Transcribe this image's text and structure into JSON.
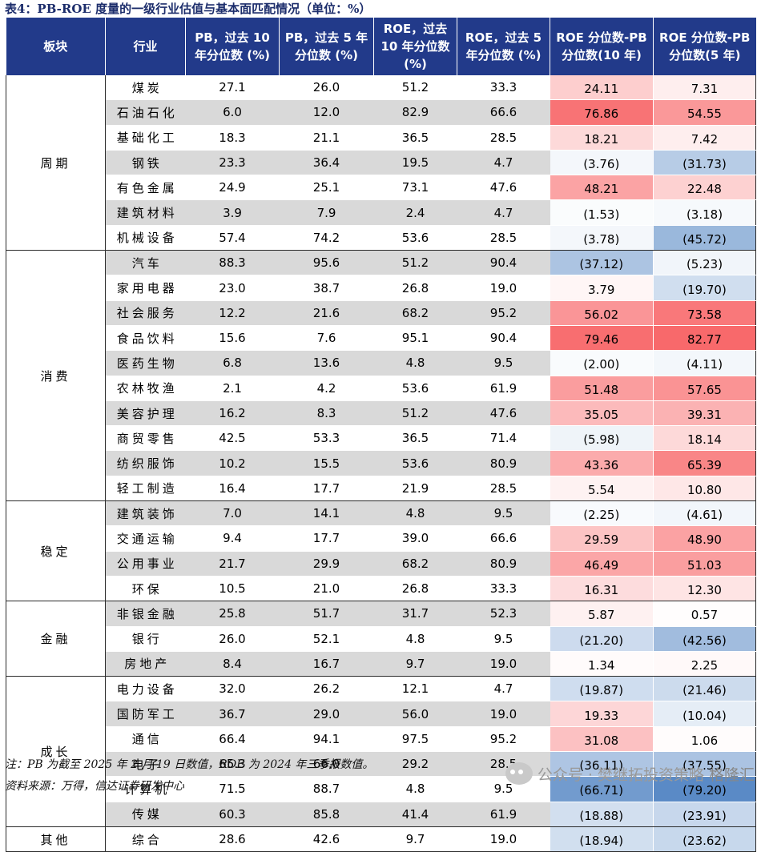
{
  "title": "表4：PB-ROE 度量的一级行业估值与基本面匹配情况（单位：%）",
  "headers": [
    "板块",
    "行业",
    "PB，过去 10 年分位数 (%)",
    "PB，过去 5 年分位数 (%)",
    "ROE，过去 10 年分位数 (%)",
    "ROE，过去 5 年分位数 (%)",
    "ROE 分位数-PB 分位数(10 年)",
    "ROE 分位数-PB 分位数(5 年)"
  ],
  "groups": [
    {
      "sector": "周期",
      "rows": [
        [
          "煤炭",
          "27.1",
          "26.0",
          "51.2",
          "33.3",
          "24.11",
          "7.31"
        ],
        [
          "石油石化",
          "6.0",
          "12.0",
          "82.9",
          "66.6",
          "76.86",
          "54.55"
        ],
        [
          "基础化工",
          "18.3",
          "21.1",
          "36.5",
          "28.5",
          "18.21",
          "7.42"
        ],
        [
          "钢铁",
          "23.3",
          "36.4",
          "19.5",
          "4.7",
          "(3.76)",
          "(31.73)"
        ],
        [
          "有色金属",
          "24.9",
          "25.1",
          "73.1",
          "47.6",
          "48.21",
          "22.48"
        ],
        [
          "建筑材料",
          "3.9",
          "7.9",
          "2.4",
          "4.7",
          "(1.53)",
          "(3.18)"
        ],
        [
          "机械设备",
          "57.4",
          "74.2",
          "53.6",
          "28.5",
          "(3.78)",
          "(45.72)"
        ]
      ]
    },
    {
      "sector": "消费",
      "rows": [
        [
          "汽车",
          "88.3",
          "95.6",
          "51.2",
          "90.4",
          "(37.12)",
          "(5.23)"
        ],
        [
          "家用电器",
          "23.0",
          "38.7",
          "26.8",
          "19.0",
          "3.79",
          "(19.70)"
        ],
        [
          "社会服务",
          "12.2",
          "21.6",
          "68.2",
          "95.2",
          "56.02",
          "73.58"
        ],
        [
          "食品饮料",
          "15.6",
          "7.6",
          "95.1",
          "90.4",
          "79.46",
          "82.77"
        ],
        [
          "医药生物",
          "6.8",
          "13.6",
          "4.8",
          "9.5",
          "(2.00)",
          "(4.11)"
        ],
        [
          "农林牧渔",
          "2.1",
          "4.2",
          "53.6",
          "61.9",
          "51.48",
          "57.65"
        ],
        [
          "美容护理",
          "16.2",
          "8.3",
          "51.2",
          "47.6",
          "35.05",
          "39.31"
        ],
        [
          "商贸零售",
          "42.5",
          "53.3",
          "36.5",
          "71.4",
          "(5.98)",
          "18.14"
        ],
        [
          "纺织服饰",
          "10.2",
          "15.5",
          "53.6",
          "80.9",
          "43.36",
          "65.39"
        ],
        [
          "轻工制造",
          "16.4",
          "17.7",
          "21.9",
          "28.5",
          "5.54",
          "10.80"
        ]
      ]
    },
    {
      "sector": "稳定",
      "rows": [
        [
          "建筑装饰",
          "7.0",
          "14.1",
          "4.8",
          "9.5",
          "(2.25)",
          "(4.61)"
        ],
        [
          "交通运输",
          "9.4",
          "17.7",
          "39.0",
          "66.6",
          "29.59",
          "48.90"
        ],
        [
          "公用事业",
          "21.7",
          "29.9",
          "68.2",
          "80.9",
          "46.49",
          "51.03"
        ],
        [
          "环保",
          "10.5",
          "21.0",
          "26.8",
          "33.3",
          "16.31",
          "12.30"
        ]
      ]
    },
    {
      "sector": "金融",
      "rows": [
        [
          "非银金融",
          "25.8",
          "51.7",
          "31.7",
          "52.3",
          "5.87",
          "0.57"
        ],
        [
          "银行",
          "26.0",
          "52.1",
          "4.8",
          "9.5",
          "(21.20)",
          "(42.56)"
        ],
        [
          "房地产",
          "8.4",
          "16.7",
          "9.7",
          "19.0",
          "1.34",
          "2.25"
        ]
      ]
    },
    {
      "sector": "成长",
      "rows": [
        [
          "电力设备",
          "32.0",
          "26.2",
          "12.1",
          "4.7",
          "(19.87)",
          "(21.46)"
        ],
        [
          "国防军工",
          "36.7",
          "29.0",
          "56.0",
          "19.0",
          "19.33",
          "(10.04)"
        ],
        [
          "通信",
          "66.4",
          "94.1",
          "97.5",
          "95.2",
          "31.08",
          "1.06"
        ],
        [
          "电子",
          "65.3",
          "66.0",
          "29.2",
          "28.5",
          "(36.11)",
          "(37.55)"
        ],
        [
          "计算机",
          "71.5",
          "88.7",
          "4.8",
          "9.5",
          "(66.71)",
          "(79.20)"
        ],
        [
          "传媒",
          "60.3",
          "85.8",
          "41.4",
          "61.9",
          "(18.88)",
          "(23.91)"
        ]
      ]
    },
    {
      "sector": "其他",
      "rows": [
        [
          "综合",
          "28.6",
          "42.6",
          "9.7",
          "19.0",
          "(18.94)",
          "(23.62)"
        ]
      ]
    }
  ],
  "note": "注：PB 为截至 2025 年 2 月 19 日数值，ROE 为 2024 年三季报数值。",
  "source": "资料来源：万得，信达证券研发中心",
  "watermark": {
    "text": "公众号 · 樊继拓投资策略",
    "brand": "格隆汇"
  },
  "colors": {
    "header_bg": "#223a8a",
    "positive": "#f8696b",
    "negative": "#5a8ac6",
    "stripe": "#d9d9d9"
  }
}
